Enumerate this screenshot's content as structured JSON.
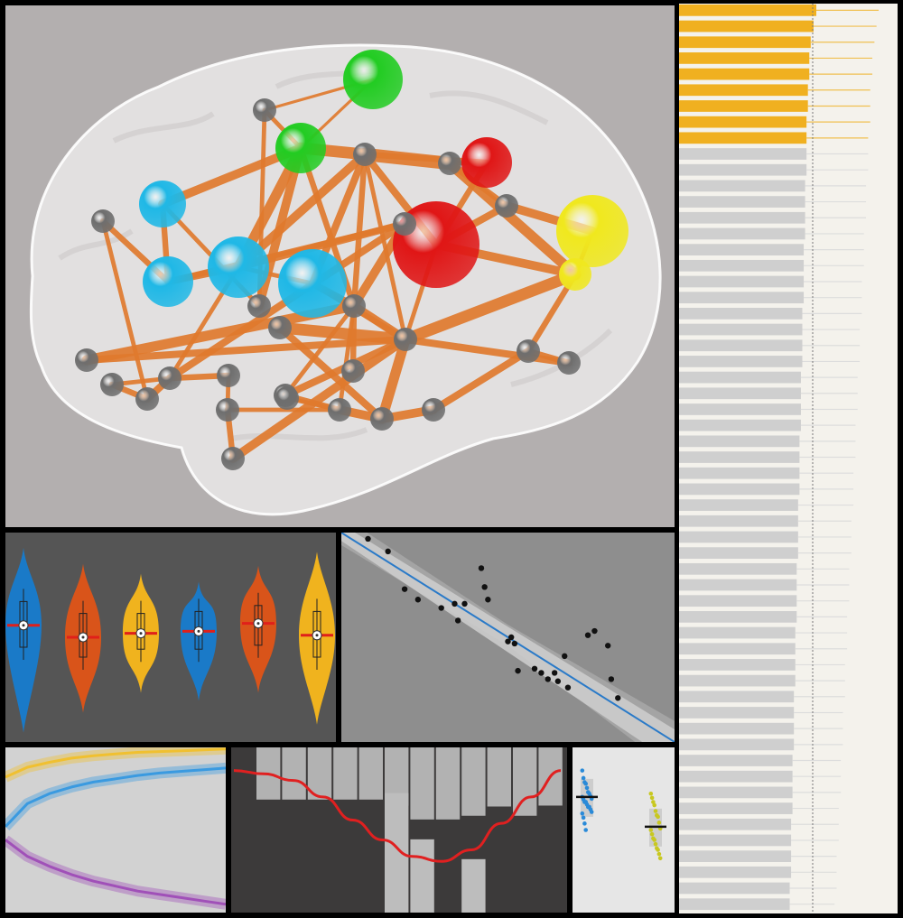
{
  "colors": {
    "background": "#000000",
    "brain_bg": "#b3afaf",
    "brain_shell": "#ffffff",
    "edge": "#e07a2e",
    "node_gray": "#6e6e6e",
    "node_green": "#22cc22",
    "node_cyan": "#1fb8e6",
    "node_red": "#e01616",
    "node_yellow": "#f0e81e",
    "violin_bg": "#555555",
    "violin_blue": "#1a7ac8",
    "violin_orange": "#d9541a",
    "violin_yellow": "#f0b31e",
    "median_red": "#e0201a",
    "scatter_bg": "#8e8e8e",
    "fit_line": "#2a7ac8",
    "ci_band": "#cfcfcf",
    "curves_bg": "#d2d2d2",
    "curve_yellow": "#f0c030",
    "curve_blue": "#3a9ae0",
    "curve_purple": "#a050b8",
    "hist_bg": "#3c3a3a",
    "hist_bar": "#bdbdbd",
    "hist_line": "#e02020",
    "strip_bg": "#e6e6e6",
    "strip_blue": "#2a8ad8",
    "strip_yellow": "#c8c820",
    "bars_bg": "#f4f2ec",
    "bar_orange": "#f0b020",
    "bar_gray": "#cfcfcf",
    "bar_whisker_orange": "#f0c050",
    "bar_whisker_gray": "#dddddd"
  },
  "chart_data": [
    {
      "type": "network",
      "title": "",
      "nodes": [
        {
          "id": 0,
          "group": "gray",
          "size": "small"
        },
        {
          "id": 1,
          "group": "green",
          "size": "large"
        },
        {
          "id": 2,
          "group": "green",
          "size": "medium"
        },
        {
          "id": 3,
          "group": "gray",
          "size": "small"
        },
        {
          "id": 4,
          "group": "gray",
          "size": "small"
        },
        {
          "id": 5,
          "group": "red",
          "size": "medium"
        },
        {
          "id": 6,
          "group": "cyan",
          "size": "medium"
        },
        {
          "id": 7,
          "group": "red",
          "size": "large"
        },
        {
          "id": 8,
          "group": "yellow",
          "size": "large"
        },
        {
          "id": 9,
          "group": "yellow",
          "size": "small"
        },
        {
          "id": 10,
          "group": "cyan",
          "size": "medium"
        },
        {
          "id": 11,
          "group": "cyan",
          "size": "large"
        },
        {
          "id": 12,
          "group": "cyan",
          "size": "large"
        },
        {
          "id": 13,
          "group": "gray",
          "size": "small"
        },
        {
          "id": 14,
          "group": "gray",
          "size": "small"
        },
        {
          "id": 15,
          "group": "gray",
          "size": "small"
        },
        {
          "id": 16,
          "group": "gray",
          "size": "small"
        },
        {
          "id": 17,
          "group": "gray",
          "size": "small"
        },
        {
          "id": 18,
          "group": "gray",
          "size": "small"
        },
        {
          "id": 19,
          "group": "gray",
          "size": "small"
        },
        {
          "id": 20,
          "group": "gray",
          "size": "small"
        },
        {
          "id": 21,
          "group": "gray",
          "size": "small"
        },
        {
          "id": 22,
          "group": "gray",
          "size": "small"
        },
        {
          "id": 23,
          "group": "gray",
          "size": "small"
        },
        {
          "id": 24,
          "group": "gray",
          "size": "small"
        },
        {
          "id": 25,
          "group": "gray",
          "size": "small"
        },
        {
          "id": 26,
          "group": "gray",
          "size": "small"
        },
        {
          "id": 27,
          "group": "gray",
          "size": "small"
        },
        {
          "id": 28,
          "group": "gray",
          "size": "small"
        },
        {
          "id": 29,
          "group": "gray",
          "size": "small"
        },
        {
          "id": 30,
          "group": "gray",
          "size": "small"
        },
        {
          "id": 31,
          "group": "gray",
          "size": "small"
        },
        {
          "id": 32,
          "group": "gray",
          "size": "small"
        },
        {
          "id": 33,
          "group": "gray",
          "size": "small"
        },
        {
          "id": 34,
          "group": "gray",
          "size": "small"
        }
      ],
      "edges": [
        [
          0,
          1,
          2
        ],
        [
          0,
          2,
          3
        ],
        [
          1,
          2,
          2
        ],
        [
          2,
          3,
          8
        ],
        [
          2,
          6,
          6
        ],
        [
          3,
          4,
          9
        ],
        [
          4,
          5,
          3
        ],
        [
          3,
          5,
          4
        ],
        [
          3,
          7,
          5
        ],
        [
          4,
          15,
          4
        ],
        [
          5,
          7,
          4
        ],
        [
          7,
          15,
          5
        ],
        [
          15,
          8,
          6
        ],
        [
          8,
          9,
          3
        ],
        [
          9,
          7,
          6
        ],
        [
          4,
          9,
          7
        ],
        [
          9,
          20,
          8
        ],
        [
          9,
          30,
          4
        ],
        [
          20,
          7,
          3
        ],
        [
          20,
          19,
          6
        ],
        [
          3,
          11,
          6
        ],
        [
          3,
          12,
          5
        ],
        [
          3,
          19,
          4
        ],
        [
          11,
          12,
          3
        ],
        [
          12,
          19,
          5
        ],
        [
          11,
          10,
          5
        ],
        [
          10,
          6,
          4
        ],
        [
          6,
          14,
          3
        ],
        [
          14,
          2,
          6
        ],
        [
          2,
          11,
          7
        ],
        [
          13,
          10,
          4
        ],
        [
          16,
          10,
          4
        ],
        [
          16,
          11,
          5
        ],
        [
          16,
          19,
          6
        ],
        [
          17,
          19,
          7
        ],
        [
          17,
          20,
          5
        ],
        [
          16,
          21,
          5
        ],
        [
          21,
          23,
          4
        ],
        [
          13,
          22,
          3
        ],
        [
          22,
          21,
          5
        ],
        [
          23,
          24,
          3
        ],
        [
          24,
          27,
          4
        ],
        [
          25,
          20,
          5
        ],
        [
          25,
          26,
          4
        ],
        [
          26,
          28,
          6
        ],
        [
          28,
          29,
          6
        ],
        [
          28,
          20,
          7
        ],
        [
          29,
          30,
          5
        ],
        [
          27,
          20,
          6
        ],
        [
          25,
          19,
          3
        ],
        [
          31,
          20,
          5
        ],
        [
          31,
          30,
          4
        ],
        [
          26,
          19,
          3
        ],
        [
          32,
          20,
          8
        ],
        [
          32,
          28,
          5
        ],
        [
          33,
          19,
          4
        ],
        [
          34,
          26,
          3
        ],
        [
          18,
          22,
          4
        ],
        [
          18,
          21,
          3
        ],
        [
          0,
          14,
          3
        ],
        [
          2,
          19,
          4
        ],
        [
          3,
          20,
          3
        ],
        [
          12,
          20,
          4
        ],
        [
          21,
          11,
          3
        ],
        [
          24,
          26,
          3
        ]
      ]
    },
    {
      "type": "violin",
      "title": "",
      "series": [
        {
          "color": "blue",
          "median": 0.56,
          "q1": 0.45,
          "q3": 0.68,
          "min": 0.02,
          "max": 0.95
        },
        {
          "color": "orange",
          "median": 0.5,
          "q1": 0.4,
          "q3": 0.62,
          "min": 0.12,
          "max": 0.87
        },
        {
          "color": "yellow",
          "median": 0.52,
          "q1": 0.44,
          "q3": 0.62,
          "min": 0.22,
          "max": 0.82
        },
        {
          "color": "blue",
          "median": 0.53,
          "q1": 0.44,
          "q3": 0.63,
          "min": 0.18,
          "max": 0.78
        },
        {
          "color": "orange",
          "median": 0.57,
          "q1": 0.46,
          "q3": 0.66,
          "min": 0.22,
          "max": 0.86
        },
        {
          "color": "yellow",
          "median": 0.51,
          "q1": 0.4,
          "q3": 0.63,
          "min": 0.06,
          "max": 0.93
        }
      ]
    },
    {
      "type": "scatter",
      "title": "",
      "xlim": [
        0,
        1
      ],
      "ylim": [
        0,
        1
      ],
      "x": [
        0.08,
        0.14,
        0.19,
        0.23,
        0.3,
        0.34,
        0.35,
        0.37,
        0.42,
        0.43,
        0.44,
        0.5,
        0.51,
        0.52,
        0.53,
        0.58,
        0.6,
        0.62,
        0.64,
        0.65,
        0.67,
        0.68,
        0.74,
        0.76,
        0.8,
        0.81,
        0.83
      ],
      "y": [
        0.97,
        0.91,
        0.73,
        0.68,
        0.64,
        0.66,
        0.58,
        0.66,
        0.83,
        0.74,
        0.68,
        0.48,
        0.5,
        0.47,
        0.34,
        0.35,
        0.33,
        0.3,
        0.33,
        0.29,
        0.41,
        0.26,
        0.51,
        0.53,
        0.46,
        0.3,
        0.21
      ],
      "fit": {
        "x0": 0.0,
        "y0": 1.0,
        "x1": 1.0,
        "y1": 0.0
      }
    },
    {
      "type": "line",
      "title": "",
      "series": [
        {
          "color": "yellow",
          "x": [
            0,
            0.1,
            0.2,
            0.3,
            0.4,
            0.5,
            0.6,
            0.7,
            0.8,
            0.9,
            1.0
          ],
          "y": [
            0.82,
            0.88,
            0.91,
            0.935,
            0.95,
            0.96,
            0.97,
            0.975,
            0.98,
            0.985,
            0.99
          ]
        },
        {
          "color": "blue",
          "x": [
            0,
            0.1,
            0.2,
            0.3,
            0.4,
            0.5,
            0.6,
            0.7,
            0.8,
            0.9,
            1.0
          ],
          "y": [
            0.52,
            0.66,
            0.72,
            0.76,
            0.79,
            0.81,
            0.83,
            0.845,
            0.855,
            0.865,
            0.875
          ]
        },
        {
          "color": "purple",
          "x": [
            0,
            0.1,
            0.2,
            0.3,
            0.4,
            0.5,
            0.6,
            0.7,
            0.8,
            0.9,
            1.0
          ],
          "y": [
            0.44,
            0.34,
            0.28,
            0.23,
            0.19,
            0.16,
            0.13,
            0.11,
            0.09,
            0.07,
            0.05
          ]
        }
      ]
    },
    {
      "type": "bar",
      "title": "",
      "values_top": [
        0.75,
        0.75,
        0.75,
        0.75,
        0.75,
        0.62,
        0.32,
        0.32,
        0.4,
        0.6,
        0.4,
        0.62
      ],
      "values_bottom": [
        0.72,
        0.72,
        0.72,
        0.72,
        0.72,
        0.22,
        0.22,
        0.7,
        0.16,
        0.5,
        0.7,
        0.72
      ],
      "line": [
        0.86,
        0.84,
        0.8,
        0.7,
        0.56,
        0.44,
        0.34,
        0.31,
        0.38,
        0.54,
        0.7,
        0.86
      ]
    },
    {
      "type": "strip",
      "title": "",
      "series": [
        {
          "color": "blue",
          "mean": 0.7,
          "points": [
            0.86,
            0.82,
            0.8,
            0.78,
            0.76,
            0.74,
            0.72,
            0.71,
            0.7,
            0.7,
            0.69,
            0.68,
            0.67,
            0.66,
            0.65,
            0.64,
            0.63,
            0.62,
            0.6,
            0.58,
            0.55,
            0.5
          ]
        },
        {
          "color": "yellow",
          "mean": 0.52,
          "points": [
            0.72,
            0.7,
            0.68,
            0.65,
            0.62,
            0.6,
            0.58,
            0.55,
            0.52,
            0.5,
            0.48,
            0.46,
            0.44,
            0.42,
            0.4,
            0.38,
            0.36,
            0.34
          ]
        }
      ]
    },
    {
      "type": "bar",
      "orientation": "horizontal",
      "title": "",
      "highlight_count": 9,
      "values": [
        0.98,
        0.96,
        0.94,
        0.93,
        0.93,
        0.92,
        0.92,
        0.91,
        0.91,
        0.91,
        0.91,
        0.9,
        0.9,
        0.9,
        0.9,
        0.89,
        0.89,
        0.89,
        0.89,
        0.88,
        0.88,
        0.88,
        0.88,
        0.87,
        0.87,
        0.87,
        0.87,
        0.86,
        0.86,
        0.86,
        0.86,
        0.85,
        0.85,
        0.85,
        0.85,
        0.84,
        0.84,
        0.84,
        0.84,
        0.83,
        0.83,
        0.83,
        0.83,
        0.82,
        0.82,
        0.82,
        0.82,
        0.81,
        0.81,
        0.81,
        0.81,
        0.8,
        0.8,
        0.8,
        0.8,
        0.79,
        0.79
      ],
      "errors": [
        0.95,
        0.94,
        0.93,
        0.92,
        0.92,
        0.91,
        0.91,
        0.91,
        0.9,
        0.9,
        0.9,
        0.89,
        0.89,
        0.89,
        0.88,
        0.88,
        0.88,
        0.87,
        0.87,
        0.87,
        0.86,
        0.86,
        0.86,
        0.85,
        0.85,
        0.85,
        0.84,
        0.84,
        0.84,
        0.83,
        0.83,
        0.83,
        0.82,
        0.82,
        0.82,
        0.81,
        0.81,
        0.81,
        0.8,
        0.8,
        0.8,
        0.79,
        0.79,
        0.79,
        0.78,
        0.78,
        0.78,
        0.77,
        0.77,
        0.77,
        0.76,
        0.76,
        0.76,
        0.75,
        0.75,
        0.75,
        0.74
      ]
    }
  ]
}
